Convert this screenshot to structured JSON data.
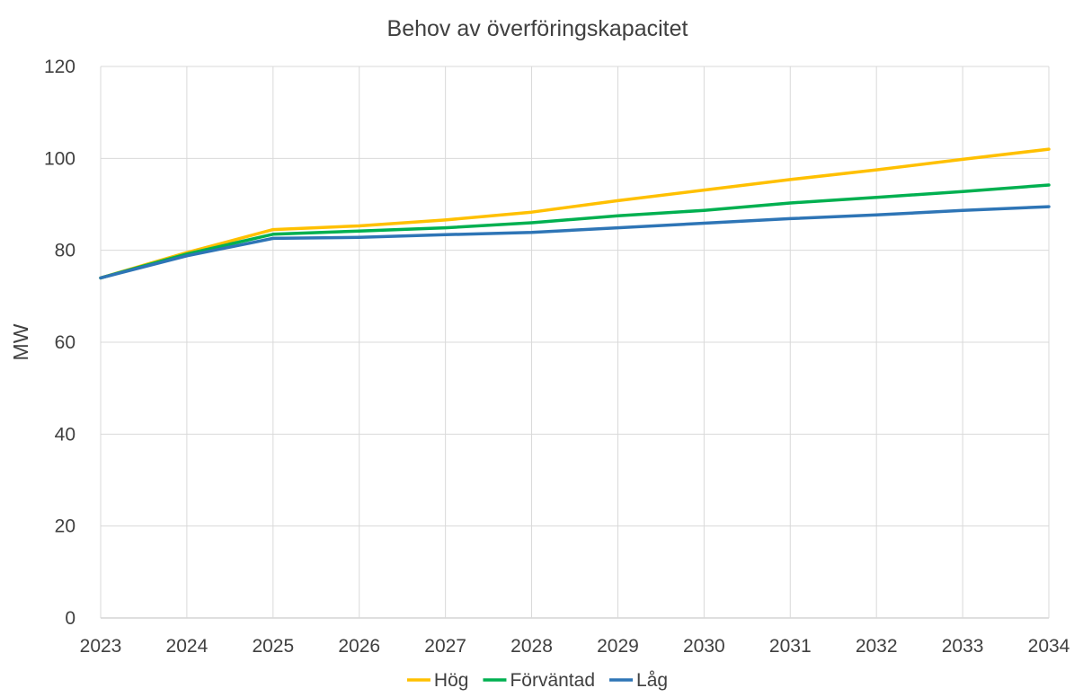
{
  "chart_data": {
    "type": "line",
    "title": "Behov av överföringskapacitet",
    "xlabel": "",
    "ylabel": "MW",
    "x": [
      "2023",
      "2024",
      "2025",
      "2026",
      "2027",
      "2028",
      "2029",
      "2030",
      "2031",
      "2032",
      "2033",
      "2034"
    ],
    "ylim": [
      0,
      120
    ],
    "yticks": [
      0,
      20,
      40,
      60,
      80,
      100,
      120
    ],
    "grid": true,
    "legend_position": "bottom",
    "series": [
      {
        "name": "Hög",
        "color": "#FFC000",
        "values": [
          74,
          79.5,
          84.5,
          85.3,
          86.6,
          88.3,
          90.8,
          93.1,
          95.4,
          97.5,
          99.8,
          102
        ]
      },
      {
        "name": "Förväntad",
        "color": "#00B050",
        "values": [
          74,
          79.2,
          83.5,
          84.2,
          84.9,
          86.0,
          87.5,
          88.7,
          90.3,
          91.5,
          92.8,
          94.2
        ]
      },
      {
        "name": "Låg",
        "color": "#2E75B6",
        "values": [
          74,
          78.8,
          82.6,
          82.8,
          83.4,
          83.9,
          84.9,
          85.9,
          86.9,
          87.7,
          88.7,
          89.5
        ]
      }
    ]
  }
}
